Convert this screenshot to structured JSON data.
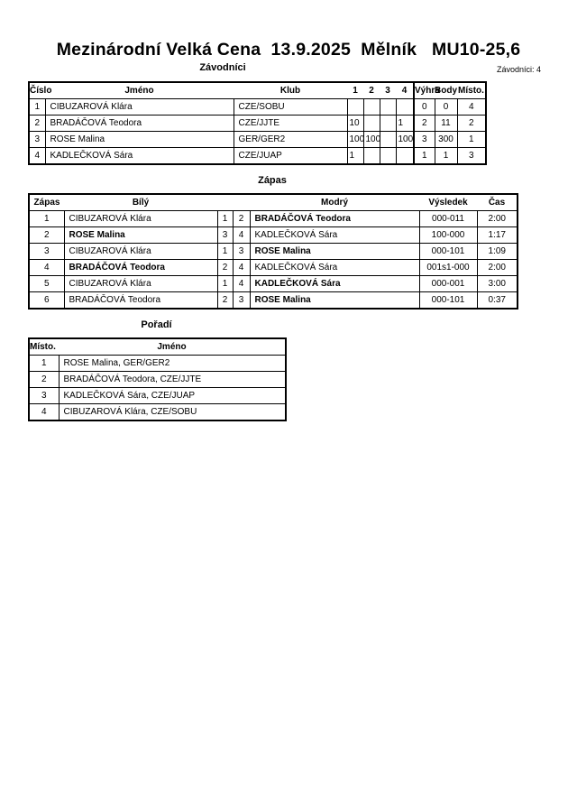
{
  "title": "Mezinárodní Velká Cena  13.9.2025  Mělník   MU10-25,6",
  "competitors": {
    "heading": "Závodníci",
    "count_label": "Závodníci: 4",
    "columns": [
      "Číslo",
      "Jméno",
      "Klub",
      "1",
      "2",
      "3",
      "4",
      "Výhra",
      "Body",
      "Místo."
    ],
    "rows": [
      {
        "no": "1",
        "name": "CIBUZAROVÁ Klára",
        "club": "CZE/SOBU",
        "s1": "",
        "s2": "",
        "s3": "",
        "s4": "",
        "wins": "0",
        "points": "0",
        "place": "4"
      },
      {
        "no": "2",
        "name": "BRADÁČOVÁ Teodora",
        "club": "CZE/JJTE",
        "s1": "10",
        "s2": "",
        "s3": "",
        "s4": "1",
        "wins": "2",
        "points": "11",
        "place": "2"
      },
      {
        "no": "3",
        "name": "ROSE Malina",
        "club": "GER/GER2",
        "s1": "100",
        "s2": "100",
        "s3": "",
        "s4": "100",
        "wins": "3",
        "points": "300",
        "place": "1"
      },
      {
        "no": "4",
        "name": "KADLEČKOVÁ Sára",
        "club": "CZE/JUAP",
        "s1": "1",
        "s2": "",
        "s3": "",
        "s4": "",
        "wins": "1",
        "points": "1",
        "place": "3"
      }
    ]
  },
  "matches": {
    "heading": "Zápas",
    "columns": [
      "Zápas",
      "Bílý",
      "Modrý",
      "Výsledek",
      "Čas"
    ],
    "rows": [
      {
        "no": "1",
        "white": "CIBUZAROVÁ Klára",
        "wn": "1",
        "bn": "2",
        "blue": "BRADÁČOVÁ Teodora",
        "result": "000-011",
        "time": "2:00",
        "winner": "blue"
      },
      {
        "no": "2",
        "white": "ROSE Malina",
        "wn": "3",
        "bn": "4",
        "blue": "KADLEČKOVÁ Sára",
        "result": "100-000",
        "time": "1:17",
        "winner": "white"
      },
      {
        "no": "3",
        "white": "CIBUZAROVÁ Klára",
        "wn": "1",
        "bn": "3",
        "blue": "ROSE Malina",
        "result": "000-101",
        "time": "1:09",
        "winner": "blue"
      },
      {
        "no": "4",
        "white": "BRADÁČOVÁ Teodora",
        "wn": "2",
        "bn": "4",
        "blue": "KADLEČKOVÁ Sára",
        "result": "001s1-000",
        "time": "2:00",
        "winner": "white"
      },
      {
        "no": "5",
        "white": "CIBUZAROVÁ Klára",
        "wn": "1",
        "bn": "4",
        "blue": "KADLEČKOVÁ Sára",
        "result": "000-001",
        "time": "3:00",
        "winner": "blue"
      },
      {
        "no": "6",
        "white": "BRADÁČOVÁ Teodora",
        "wn": "2",
        "bn": "3",
        "blue": "ROSE Malina",
        "result": "000-101",
        "time": "0:37",
        "winner": "blue"
      }
    ]
  },
  "ranking": {
    "heading": "Pořadí",
    "columns": [
      "Místo.",
      "Jméno"
    ],
    "rows": [
      {
        "place": "1",
        "name": "ROSE Malina, GER/GER2"
      },
      {
        "place": "2",
        "name": "BRADÁČOVÁ Teodora, CZE/JJTE"
      },
      {
        "place": "3",
        "name": "KADLEČKOVÁ Sára, CZE/JUAP"
      },
      {
        "place": "4",
        "name": "CIBUZAROVÁ Klára, CZE/SOBU"
      }
    ]
  }
}
